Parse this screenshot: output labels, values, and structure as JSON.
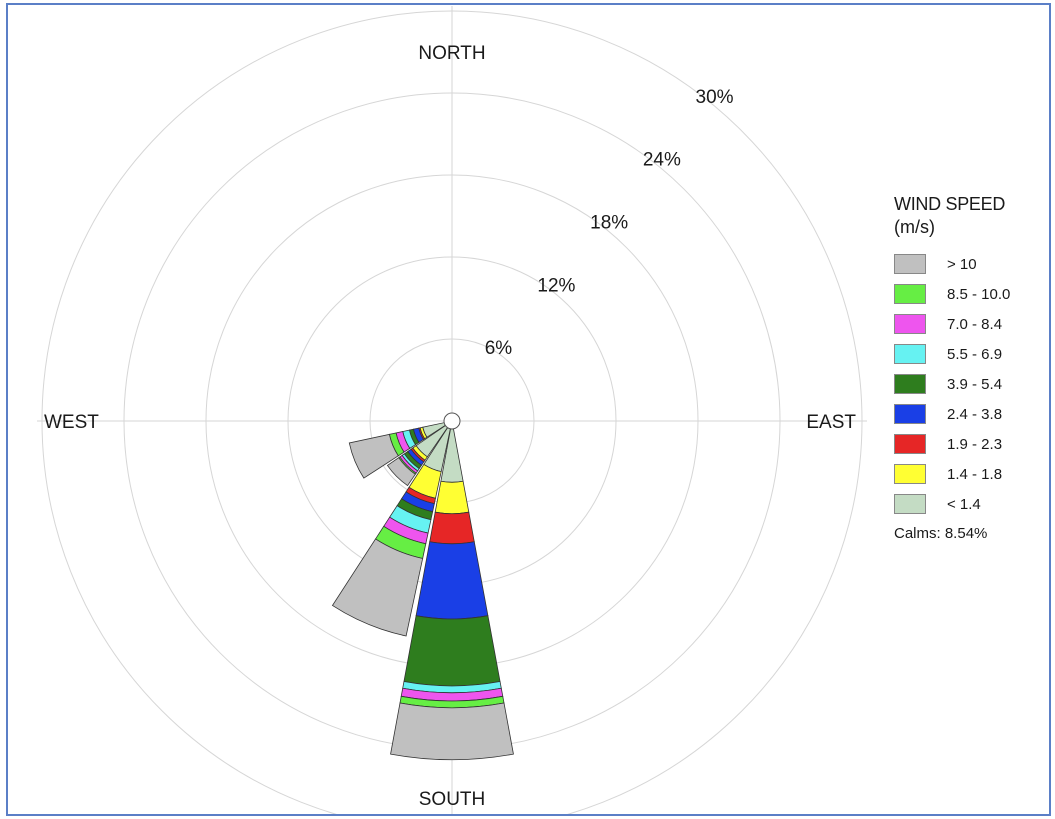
{
  "chart_data": {
    "type": "windrose",
    "directions": [
      "N",
      "NNE",
      "NE",
      "ENE",
      "E",
      "ESE",
      "SE",
      "SSE",
      "S",
      "SSW",
      "SW",
      "WSW",
      "W",
      "WNW",
      "NW",
      "NNW"
    ],
    "compass_labels": {
      "north": "NORTH",
      "east": "EAST",
      "south": "SOUTH",
      "west": "WEST"
    },
    "ring_labels": [
      "6%",
      "12%",
      "18%",
      "24%",
      "30%"
    ],
    "rmax_percent": 30,
    "legend": {
      "title": "WIND SPEED",
      "unit": "(m/s)",
      "calms": "Calms: 8.54%",
      "bins": [
        {
          "label": "> 10",
          "color": "#c0c0c0"
        },
        {
          "label": "8.5 - 10.0",
          "color": "#66ee44"
        },
        {
          "label": "7.0 - 8.4",
          "color": "#ee55ee"
        },
        {
          "label": "5.5 - 6.9",
          "color": "#66f2f2"
        },
        {
          "label": "3.9 - 5.4",
          "color": "#2e7d1e"
        },
        {
          "label": "2.4 - 3.8",
          "color": "#1a3fe6"
        },
        {
          "label": "1.9 - 2.3",
          "color": "#e62626"
        },
        {
          "label": "1.4 - 1.8",
          "color": "#ffff33"
        },
        {
          "label": "< 1.4",
          "color": "#c4dcc4"
        }
      ]
    },
    "series": [
      {
        "name": "< 1.4",
        "values": [
          0,
          0,
          0,
          0,
          0,
          0,
          0,
          0,
          3.9,
          3.2,
          2.6,
          1.6,
          0,
          0,
          0,
          0
        ]
      },
      {
        "name": "1.4 - 1.8",
        "values": [
          0,
          0,
          0,
          0,
          0,
          0,
          0,
          0,
          2.3,
          2.0,
          0.3,
          0.2,
          0,
          0,
          0,
          0
        ]
      },
      {
        "name": "1.9 - 2.3",
        "values": [
          0,
          0,
          0,
          0,
          0,
          0,
          0,
          0,
          2.2,
          0.4,
          0.15,
          0.1,
          0,
          0,
          0,
          0
        ]
      },
      {
        "name": "2.4 - 3.8",
        "values": [
          0,
          0,
          0,
          0,
          0,
          0,
          0,
          0,
          5.5,
          0.6,
          0.3,
          0.4,
          0,
          0,
          0,
          0
        ]
      },
      {
        "name": "3.9 - 5.4",
        "values": [
          0,
          0,
          0,
          0,
          0,
          0,
          0,
          0,
          4.9,
          0.6,
          0.3,
          0.3,
          0,
          0,
          0,
          0
        ]
      },
      {
        "name": "5.5 - 6.9",
        "values": [
          0,
          0,
          0,
          0,
          0,
          0,
          0,
          0,
          0.5,
          1.0,
          0.2,
          0.5,
          0,
          0,
          0,
          0
        ]
      },
      {
        "name": "7.0 - 8.4",
        "values": [
          0,
          0,
          0,
          0,
          0,
          0,
          0,
          0,
          0.6,
          0.8,
          0.2,
          0.5,
          0,
          0,
          0,
          0
        ]
      },
      {
        "name": "8.5 - 10.0",
        "values": [
          0,
          0,
          0,
          0,
          0,
          0,
          0,
          0,
          0.5,
          1.1,
          0.1,
          0.5,
          0,
          0,
          0,
          0
        ]
      },
      {
        "name": "> 10",
        "values": [
          0,
          0,
          0,
          0,
          0,
          0,
          0,
          0,
          3.8,
          5.8,
          1.0,
          3.0,
          0,
          0,
          0,
          0
        ]
      }
    ]
  }
}
